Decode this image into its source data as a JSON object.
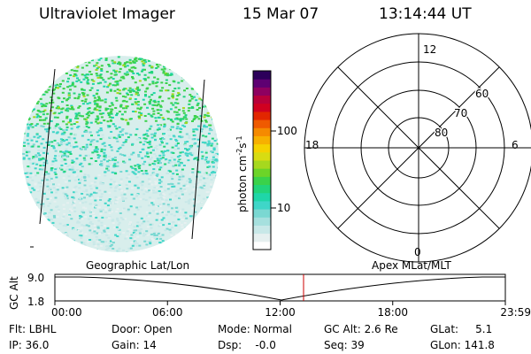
{
  "header": {
    "title": "Ultraviolet Imager",
    "date": "15 Mar 07",
    "time": "13:14:44 UT"
  },
  "colorbar": {
    "label_base": "photon cm",
    "label_exp1": "-2",
    "label_mid": "s",
    "label_exp2": "-1",
    "tick_labels": [
      "100",
      "10"
    ],
    "colors": [
      "#ffffff",
      "#e6f0f0",
      "#c8e8e8",
      "#a6e0de",
      "#7ad8d2",
      "#3fd6c8",
      "#1fd6a8",
      "#22d47a",
      "#3ad24a",
      "#6cd428",
      "#a6d81e",
      "#d8dc12",
      "#f5d200",
      "#f7b000",
      "#f58a00",
      "#ef5a00",
      "#e22600",
      "#d00020",
      "#b8003a",
      "#8e0060",
      "#5e0072",
      "#2c005a"
    ]
  },
  "polar": {
    "mlat_labels": [
      "60",
      "70",
      "80"
    ],
    "mlt_labels": [
      "12",
      "18",
      "6",
      "0"
    ]
  },
  "timeline": {
    "left_label": "Geographic Lat/Lon",
    "right_label": "Apex MLat/MLT",
    "axis_label": "GC Alt",
    "ymax": "9.0",
    "ymin": "1.8",
    "time_ticks": [
      "00:00",
      "06:00",
      "12:00",
      "18:00",
      "23:59"
    ],
    "current_fraction": 0.552
  },
  "info": {
    "flt": "Flt: LBHL",
    "ip": "IP: 36.0",
    "door": "Door: Open",
    "gain": "Gain: 14",
    "mode": "Mode: Normal",
    "dsp": "Dsp:    -0.0",
    "gcalt": "GC Alt: 2.6 Re",
    "seq": "Seq: 39",
    "glat": "GLat:     5.1",
    "glon": "GLon: 141.8"
  }
}
